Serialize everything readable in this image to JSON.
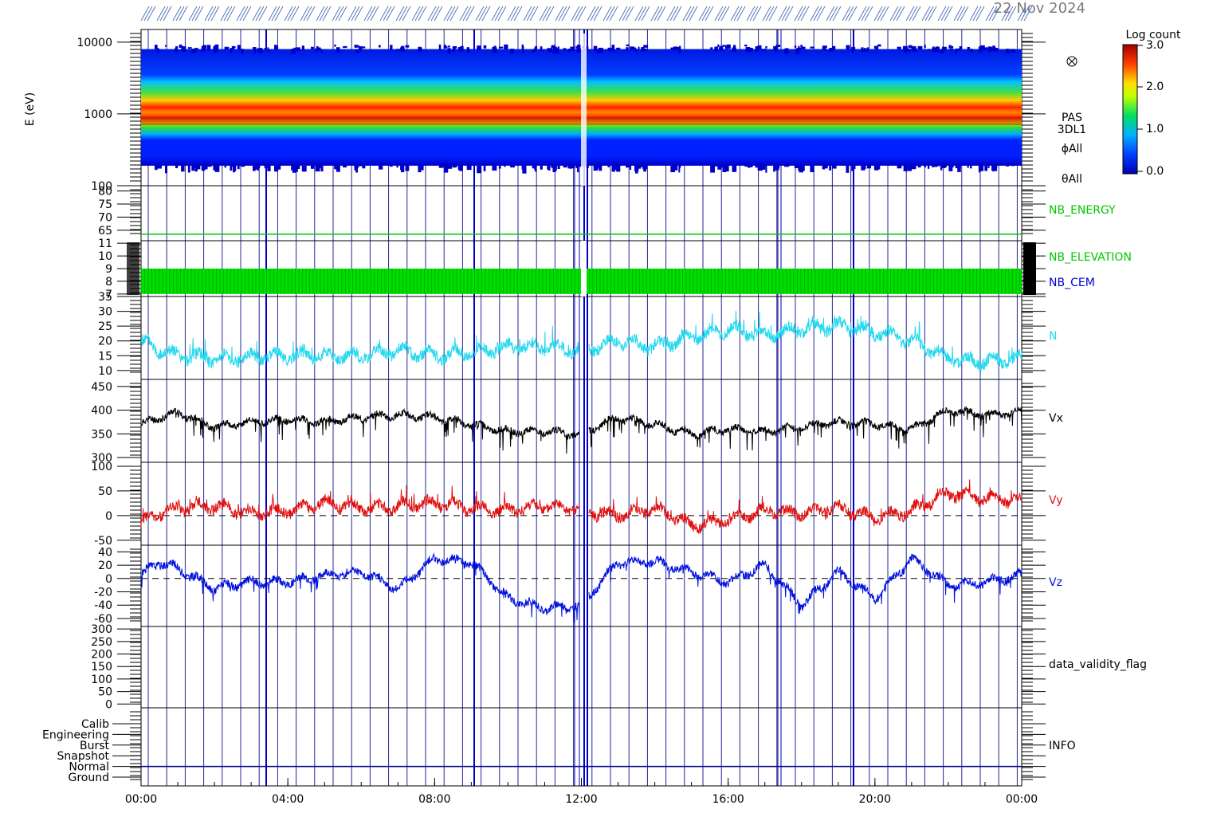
{
  "header": {
    "date_text": "22 Nov 2024"
  },
  "x_axis": {
    "ticks": [
      "00:00",
      "04:00",
      "08:00",
      "12:00",
      "16:00",
      "20:00",
      "00:00"
    ]
  },
  "colorbar": {
    "title": "Log count",
    "ticks": [
      "3.0",
      "2.0",
      "1.0",
      "0.0"
    ]
  },
  "chart_data": [
    {
      "type": "heatmap",
      "name": "energy-spectrogram",
      "ylabel": "E (eV)",
      "y_scale": "log",
      "ylim": [
        100,
        15000
      ],
      "y_ticks": [
        "10000",
        "1000",
        "100"
      ],
      "labels": [
        "PAS",
        "3DL1",
        "ϕAll",
        "θAll"
      ],
      "color_range": [
        0.0,
        3.0
      ],
      "peak_energy_eV": 800,
      "colors": {
        "low": "#0000c8",
        "high": "#b00000"
      }
    },
    {
      "type": "line",
      "name": "NB_ENERGY",
      "label": "NB_ENERGY",
      "ylim": [
        61,
        82
      ],
      "y_ticks": [
        "80",
        "75",
        "70",
        "65"
      ],
      "constant_value": 63.5,
      "color": "#00c800"
    },
    {
      "type": "area",
      "name": "NB_ELEVATION_CEM",
      "labels": [
        "NB_ELEVATION",
        "NB_CEM"
      ],
      "label_colors": [
        "#00c800",
        "#0000c8"
      ],
      "ylim": [
        6.8,
        11.2
      ],
      "y_ticks": [
        "11",
        "10",
        "9",
        "8",
        "7"
      ],
      "band_range": [
        7,
        9
      ],
      "color": "#00dd00"
    },
    {
      "type": "line",
      "name": "N",
      "label": "N",
      "ylim": [
        7,
        35
      ],
      "y_ticks": [
        "35",
        "30",
        "25",
        "20",
        "15",
        "10"
      ],
      "color": "#22d8ee",
      "x_hours": [
        0,
        0.5,
        1,
        2,
        3,
        4,
        5,
        6,
        7,
        8,
        9,
        10,
        11,
        12,
        13,
        14,
        15,
        16,
        17,
        18,
        19,
        20,
        21,
        22,
        23,
        24
      ],
      "values": [
        20,
        17,
        15,
        14,
        14.5,
        15,
        15,
        15,
        17,
        15,
        16,
        18,
        18,
        17,
        20,
        18,
        21,
        24,
        22,
        24,
        25,
        23,
        20,
        14,
        13,
        14
      ]
    },
    {
      "type": "line",
      "name": "Vx",
      "label": "Vx",
      "ylim": [
        290,
        465
      ],
      "y_ticks": [
        "450",
        "400",
        "350",
        "300"
      ],
      "color": "#000000",
      "x_hours": [
        0,
        0.5,
        1,
        2,
        3,
        4,
        5,
        6,
        7,
        8,
        9,
        10,
        11,
        12,
        13,
        14,
        15,
        16,
        17,
        18,
        19,
        20,
        21,
        22,
        23,
        24
      ],
      "values": [
        370,
        385,
        395,
        365,
        375,
        380,
        375,
        385,
        390,
        385,
        370,
        355,
        355,
        350,
        385,
        370,
        350,
        360,
        355,
        365,
        375,
        370,
        360,
        400,
        390,
        395
      ]
    },
    {
      "type": "line",
      "name": "Vy",
      "label": "Vy",
      "ylim": [
        -60,
        108
      ],
      "y_ticks": [
        "100",
        "50",
        "0",
        "-50"
      ],
      "color": "#e01010",
      "zero_line": true,
      "x_hours": [
        0,
        0.5,
        1,
        2,
        3,
        4,
        5,
        6,
        7,
        8,
        9,
        10,
        11,
        12,
        13,
        14,
        15,
        16,
        17,
        18,
        19,
        20,
        21,
        22,
        23,
        24
      ],
      "values": [
        -15,
        5,
        15,
        20,
        5,
        10,
        25,
        15,
        20,
        25,
        15,
        10,
        20,
        10,
        0,
        15,
        -20,
        -10,
        10,
        5,
        15,
        -5,
        10,
        45,
        35,
        30
      ]
    },
    {
      "type": "line",
      "name": "Vz",
      "label": "Vz",
      "ylim": [
        -72,
        50
      ],
      "y_ticks": [
        "40",
        "20",
        "0",
        "-20",
        "-40",
        "-60"
      ],
      "color": "#0010dd",
      "zero_line": true,
      "x_hours": [
        0,
        0.5,
        1,
        2,
        3,
        4,
        5,
        6,
        7,
        8,
        9,
        10,
        11,
        12,
        13,
        14,
        15,
        16,
        17,
        18,
        19,
        20,
        21,
        22,
        23,
        24
      ],
      "values": [
        5,
        25,
        15,
        -15,
        -5,
        -5,
        5,
        10,
        -15,
        30,
        25,
        -30,
        -45,
        -40,
        25,
        25,
        10,
        -5,
        20,
        -40,
        10,
        -30,
        30,
        -10,
        -5,
        5
      ]
    },
    {
      "type": "line",
      "name": "data_validity_flag",
      "label": "data_validity_flag",
      "ylim": [
        -15,
        310
      ],
      "y_ticks": [
        "300",
        "250",
        "200",
        "150",
        "100",
        "50",
        "0"
      ]
    },
    {
      "type": "table",
      "name": "INFO",
      "label": "INFO",
      "rows": [
        "Calib",
        "Engineering",
        "Burst",
        "Snapshot",
        "Normal",
        "Ground"
      ]
    }
  ]
}
